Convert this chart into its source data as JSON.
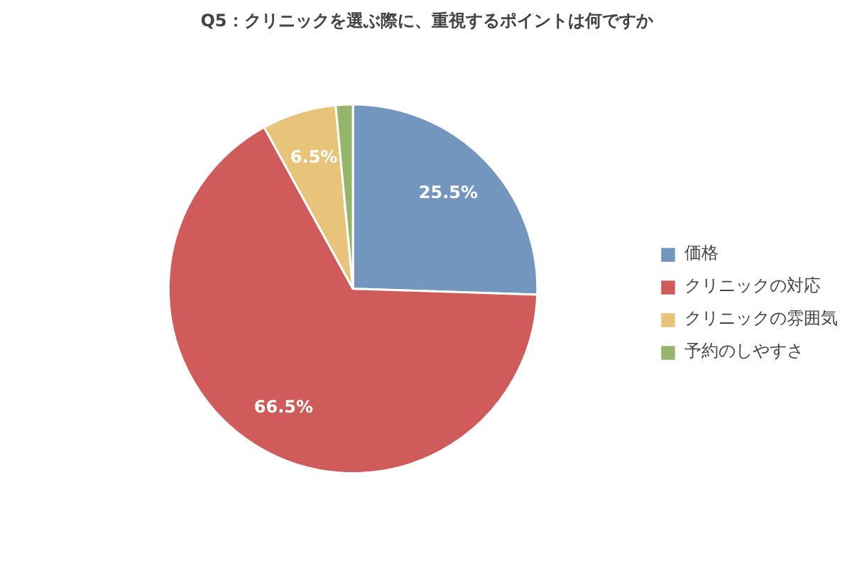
{
  "chart_data": {
    "type": "pie",
    "title": "Q5：クリニックを選ぶ際に、重視するポイントは何ですか",
    "categories": [
      "価格",
      "クリニックの対応",
      "クリニックの雰囲気",
      "予約のしやすさ"
    ],
    "values": [
      25.5,
      66.5,
      6.5,
      1.5
    ],
    "colors": [
      "#7396bf",
      "#d05b5b",
      "#e8c37a",
      "#94b56a"
    ],
    "value_labels": [
      "25.5%",
      "66.5%",
      "6.5%",
      null
    ],
    "legend": "right"
  }
}
